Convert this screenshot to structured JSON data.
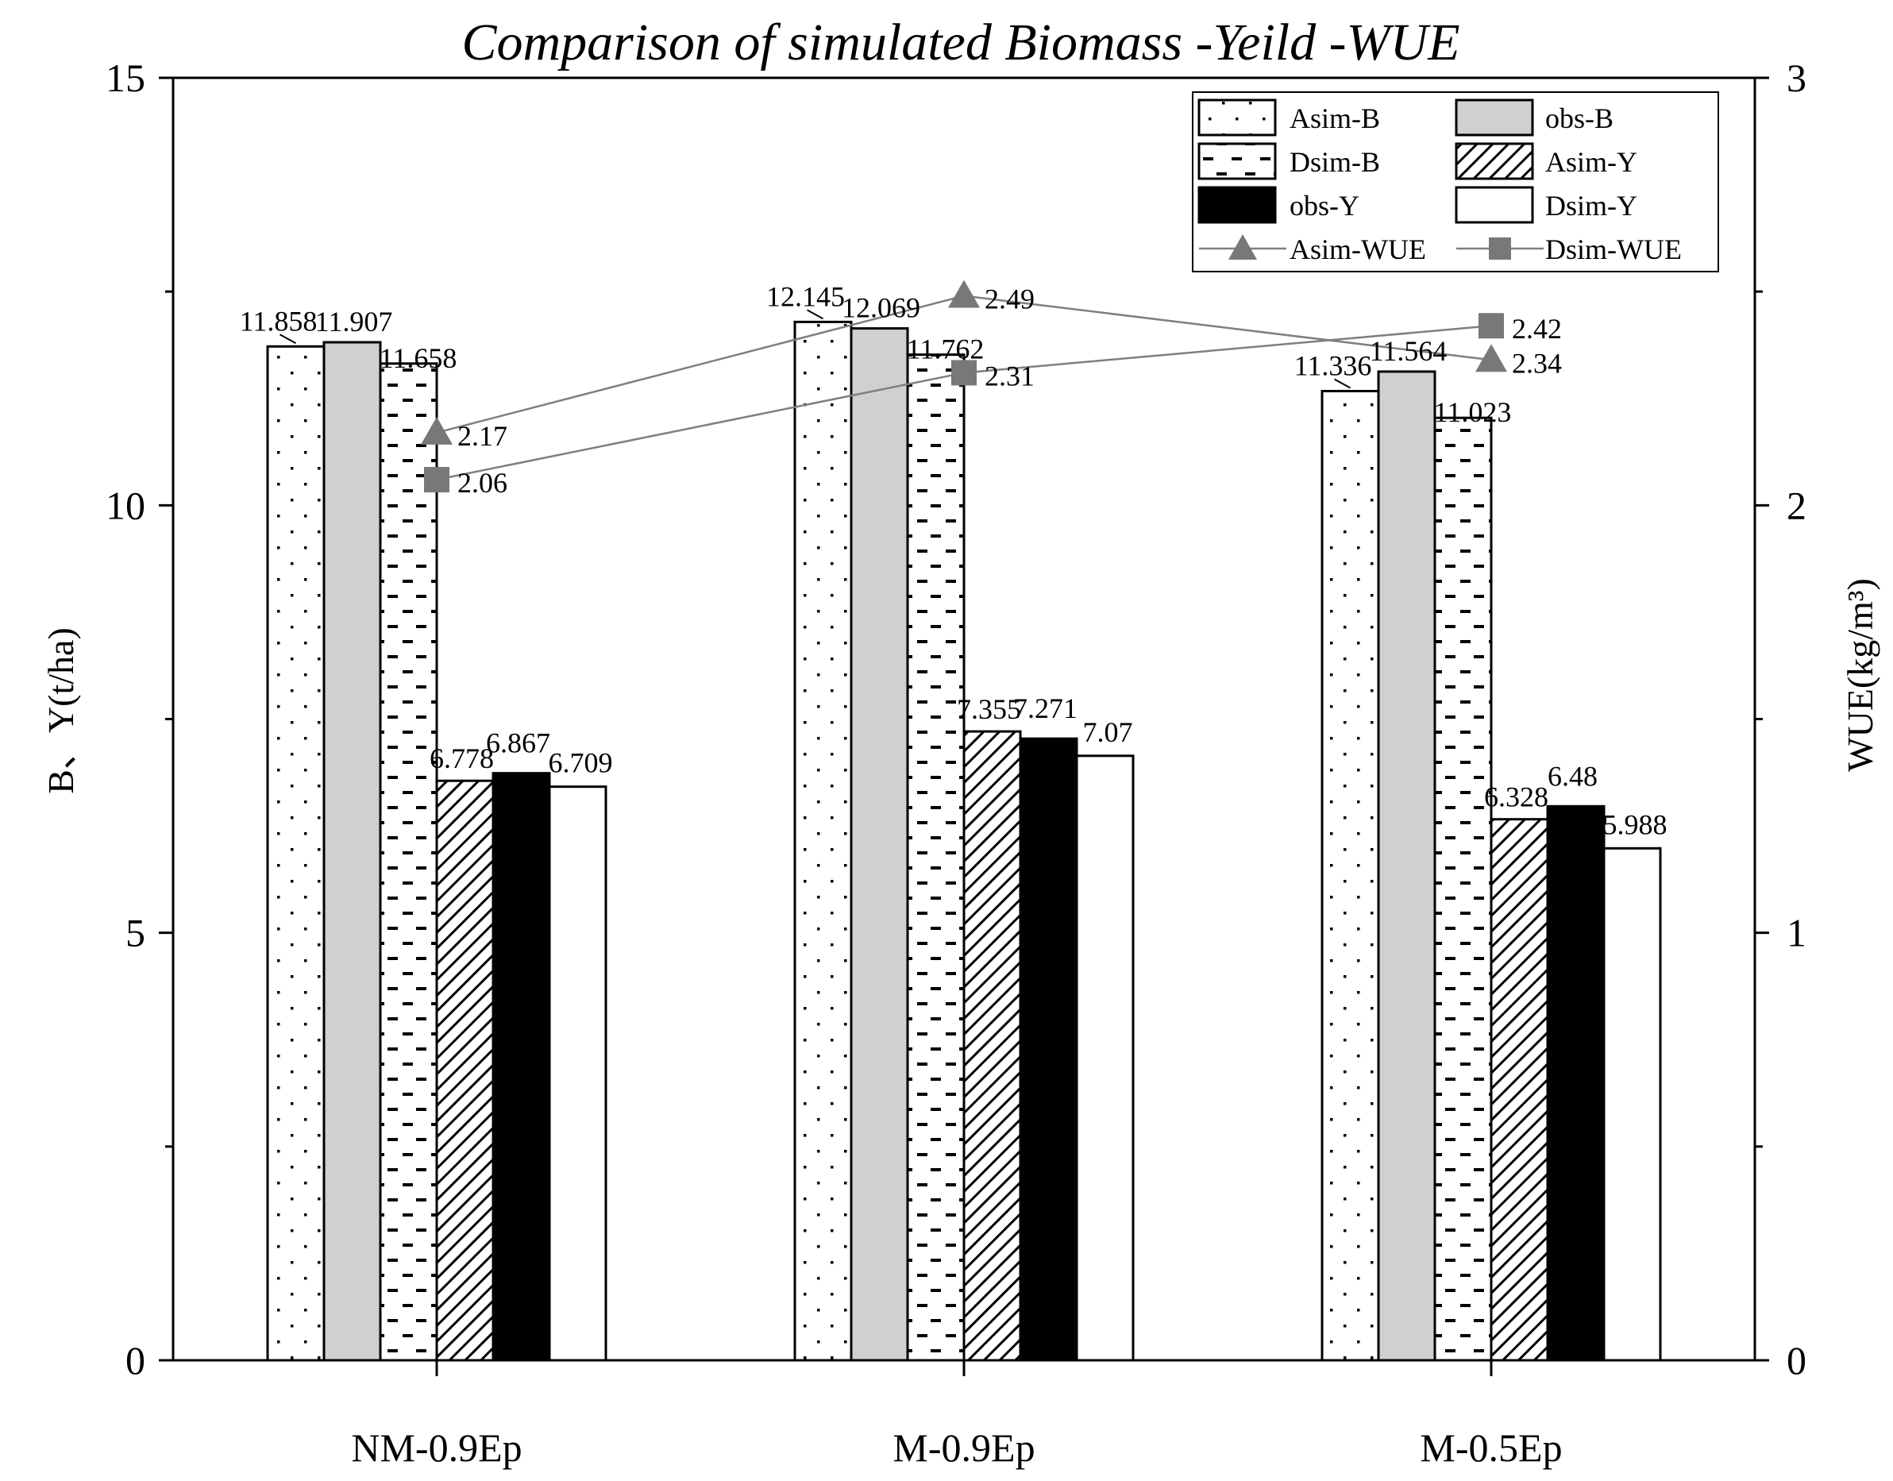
{
  "chart_data": {
    "type": "bar",
    "title": "Comparison of simulated Biomass -Yeild -WUE",
    "xlabel": "",
    "ylabel": "B、Y(t/ha)",
    "y2label": "WUE(kg/m³)",
    "ylim": [
      0,
      15
    ],
    "y2lim": [
      0,
      3
    ],
    "yticks": [
      0,
      5,
      10,
      15
    ],
    "y2ticks": [
      0,
      1,
      2,
      3
    ],
    "categories": [
      "NM-0.9Ep",
      "M-0.9Ep",
      "M-0.5Ep"
    ],
    "bar_series": [
      {
        "name": "Asim-B",
        "pattern": "dots",
        "values": [
          11.858,
          12.145,
          11.336
        ],
        "labels": [
          "11.858",
          "12.145",
          "11.336"
        ]
      },
      {
        "name": "obs-B",
        "pattern": "gray",
        "values": [
          11.907,
          12.069,
          11.564
        ],
        "labels": [
          "11.907",
          "12.069",
          "11.564"
        ]
      },
      {
        "name": "Dsim-B",
        "pattern": "dashes",
        "values": [
          11.658,
          11.762,
          11.023
        ],
        "labels": [
          "11.658",
          "11.762",
          "11.023"
        ]
      },
      {
        "name": "Asim-Y",
        "pattern": "hatch",
        "values": [
          6.778,
          7.355,
          6.328
        ],
        "labels": [
          "6.778",
          "7.355",
          "6.328"
        ]
      },
      {
        "name": "obs-Y",
        "pattern": "black",
        "values": [
          6.867,
          7.271,
          6.48
        ],
        "labels": [
          "6.867",
          "7.271",
          "6.48"
        ]
      },
      {
        "name": "Dsim-Y",
        "pattern": "white",
        "values": [
          6.709,
          7.07,
          5.988
        ],
        "labels": [
          "6.709",
          "7.07",
          "5.988"
        ]
      }
    ],
    "line_series": [
      {
        "name": "Asim-WUE",
        "marker": "triangle",
        "axis": "right",
        "values": [
          2.17,
          2.49,
          2.34
        ],
        "labels": [
          "2.17",
          "2.49",
          "2.34"
        ]
      },
      {
        "name": "Dsim-WUE",
        "marker": "square",
        "axis": "right",
        "values": [
          2.06,
          2.31,
          2.42
        ],
        "labels": [
          "2.06",
          "2.31",
          "2.42"
        ]
      }
    ],
    "legend_position": "top-right",
    "colors": {
      "gray_bar": "#d0d0d0",
      "line": "#7f7f7f",
      "marker": "#787878"
    }
  }
}
